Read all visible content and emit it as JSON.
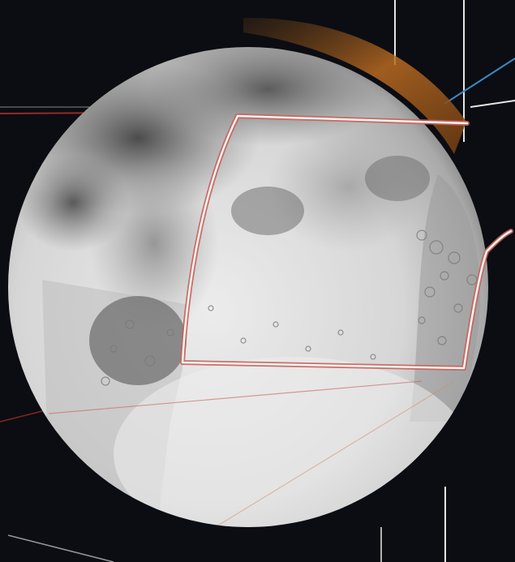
{
  "scene": {
    "subject": "moon-mosaic",
    "colors": {
      "space": "#0b0d12",
      "planet_light": "#f1f1f1",
      "planet_mid": "#c9c9c9",
      "planet_dark": "#6e6e6e",
      "planet_shadow": "#3a3a3a",
      "outline_red": "#c8625a",
      "outline_white": "#f5f3f0",
      "limb_orange": "#b96a22",
      "trajectory_blue": "#3d86c6",
      "trajectory_white": "#e8e8e8",
      "trajectory_red": "#b8322b"
    }
  }
}
